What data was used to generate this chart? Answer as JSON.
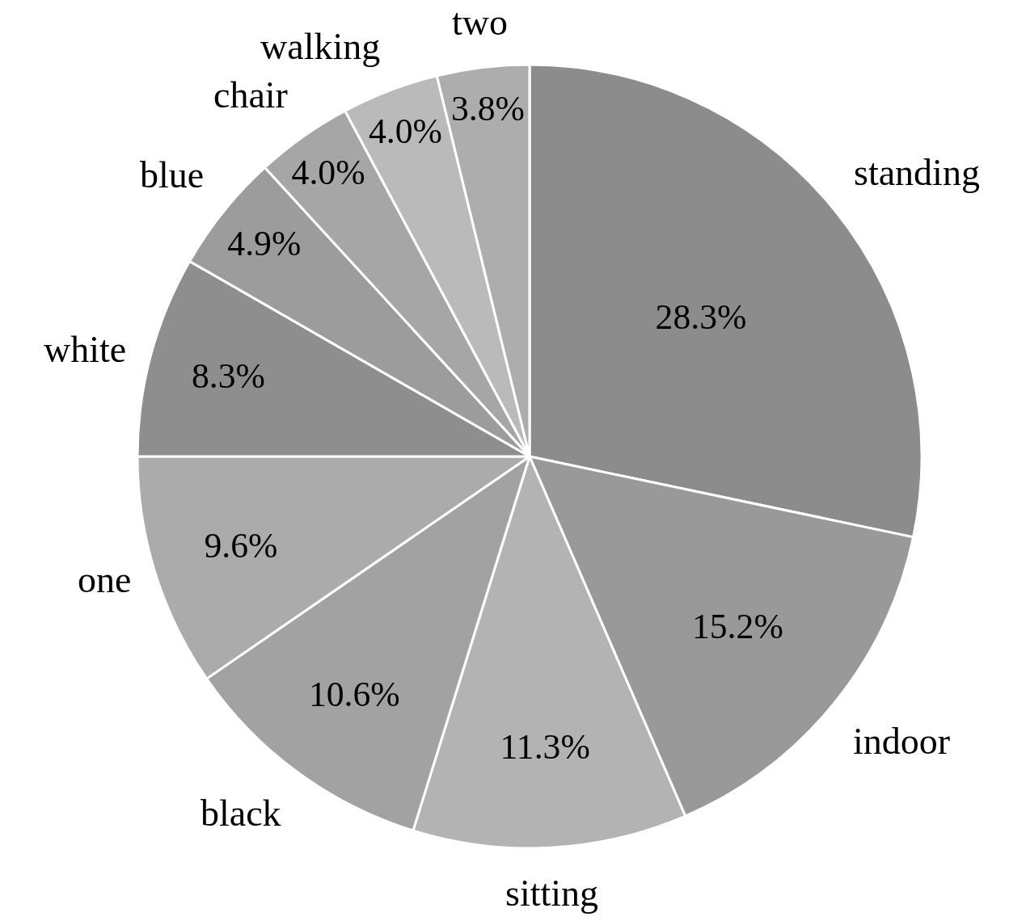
{
  "chart_data": {
    "type": "pie",
    "categories": [
      "standing",
      "indoor",
      "sitting",
      "black",
      "one",
      "white",
      "blue",
      "chair",
      "walking",
      "two"
    ],
    "values": [
      28.3,
      15.2,
      11.3,
      10.6,
      9.6,
      8.3,
      4.9,
      4.0,
      4.0,
      3.8
    ],
    "value_labels": [
      "28.3%",
      "15.2%",
      "11.3%",
      "10.6%",
      "9.6%",
      "8.3%",
      "4.9%",
      "4.0%",
      "4.0%",
      "3.8%"
    ],
    "colors": [
      "#8c8c8c",
      "#999999",
      "#b3b3b3",
      "#a2a2a2",
      "#ababab",
      "#8e8e8e",
      "#9c9c9c",
      "#a6a6a6",
      "#bababa",
      "#adadad"
    ],
    "legend": false
  }
}
